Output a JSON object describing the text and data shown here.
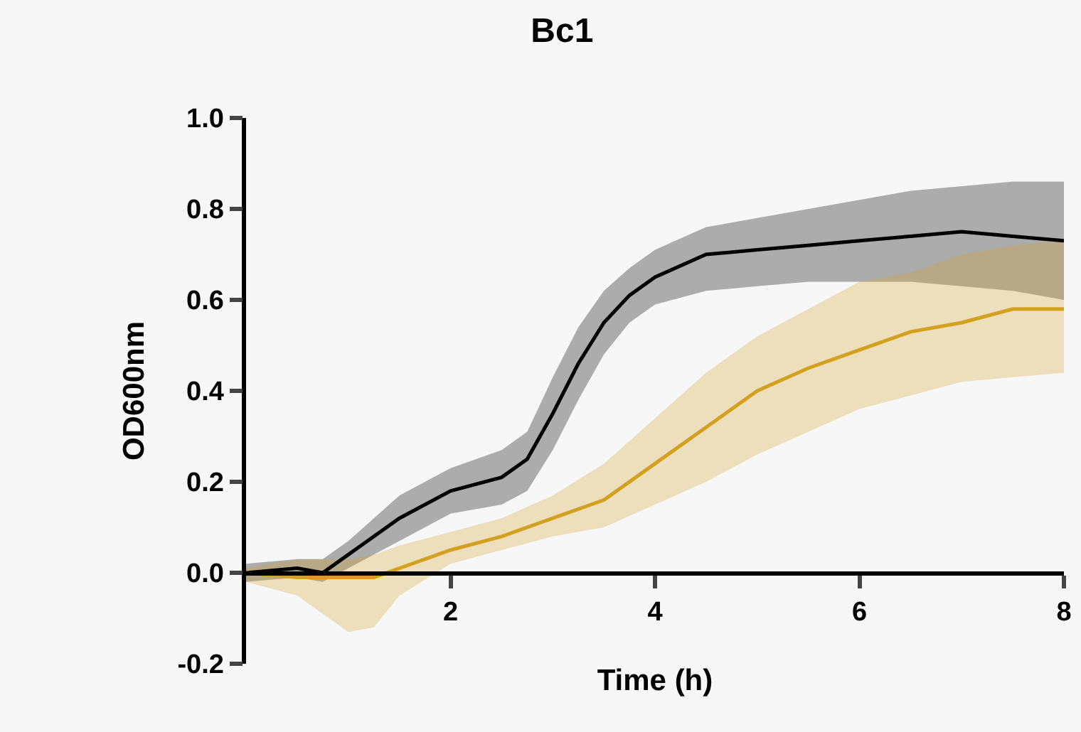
{
  "chart_data": {
    "type": "line",
    "title": "Bc1",
    "xlabel": "Time (h)",
    "ylabel": "OD600nm",
    "xlim": [
      0,
      8
    ],
    "xticks": [
      2,
      4,
      6,
      8
    ],
    "ylim": [
      -0.2,
      1.0
    ],
    "yticks": [
      {
        "value": -0.2,
        "label": "-0.2"
      },
      {
        "value": 0,
        "label": "0.0"
      },
      {
        "value": 0.2,
        "label": "0.2"
      },
      {
        "value": 0.4,
        "label": "0.4"
      },
      {
        "value": 0.6,
        "label": "0.6"
      },
      {
        "value": 0.8,
        "label": "0.8"
      },
      {
        "value": 1,
        "label": "1.0"
      }
    ],
    "grid": false,
    "marker": "none",
    "line_style": "solid",
    "series": [
      {
        "color": "#000000",
        "x": [
          0,
          0.5,
          0.75,
          1,
          1.5,
          2,
          2.5,
          2.75,
          3,
          3.25,
          3.5,
          3.75,
          4,
          4.5,
          5,
          5.5,
          6,
          6.5,
          7,
          7.5,
          8
        ],
        "values": [
          0,
          0.01,
          0,
          0.04,
          0.12,
          0.18,
          0.21,
          0.25,
          0.35,
          0.46,
          0.55,
          0.61,
          0.65,
          0.7,
          0.71,
          0.72,
          0.73,
          0.74,
          0.75,
          0.74,
          0.73
        ],
        "lower": [
          -0.02,
          -0.01,
          -0.02,
          0.01,
          0.07,
          0.13,
          0.15,
          0.18,
          0.27,
          0.38,
          0.48,
          0.55,
          0.59,
          0.62,
          0.63,
          0.64,
          0.64,
          0.64,
          0.63,
          0.62,
          0.6
        ],
        "upper": [
          0.02,
          0.03,
          0.03,
          0.07,
          0.17,
          0.23,
          0.27,
          0.31,
          0.43,
          0.54,
          0.62,
          0.67,
          0.71,
          0.76,
          0.78,
          0.8,
          0.82,
          0.84,
          0.85,
          0.86,
          0.86
        ]
      },
      {
        "color": "#d4a020",
        "x": [
          0,
          0.5,
          1,
          1.25,
          1.5,
          2,
          2.5,
          3,
          3.5,
          4,
          4.5,
          5,
          5.5,
          6,
          6.5,
          7,
          7.5,
          8
        ],
        "values": [
          0,
          -0.01,
          -0.01,
          -0.01,
          0.01,
          0.05,
          0.08,
          0.12,
          0.16,
          0.24,
          0.32,
          0.4,
          0.45,
          0.49,
          0.53,
          0.55,
          0.58,
          0.58
        ],
        "lower": [
          -0.02,
          -0.05,
          -0.13,
          -0.12,
          -0.05,
          0.02,
          0.05,
          0.08,
          0.1,
          0.15,
          0.2,
          0.26,
          0.31,
          0.36,
          0.39,
          0.42,
          0.43,
          0.44
        ],
        "upper": [
          0.01,
          0.03,
          0.03,
          0.04,
          0.06,
          0.09,
          0.12,
          0.17,
          0.24,
          0.34,
          0.44,
          0.52,
          0.58,
          0.64,
          0.66,
          0.7,
          0.72,
          0.73
        ]
      }
    ]
  }
}
